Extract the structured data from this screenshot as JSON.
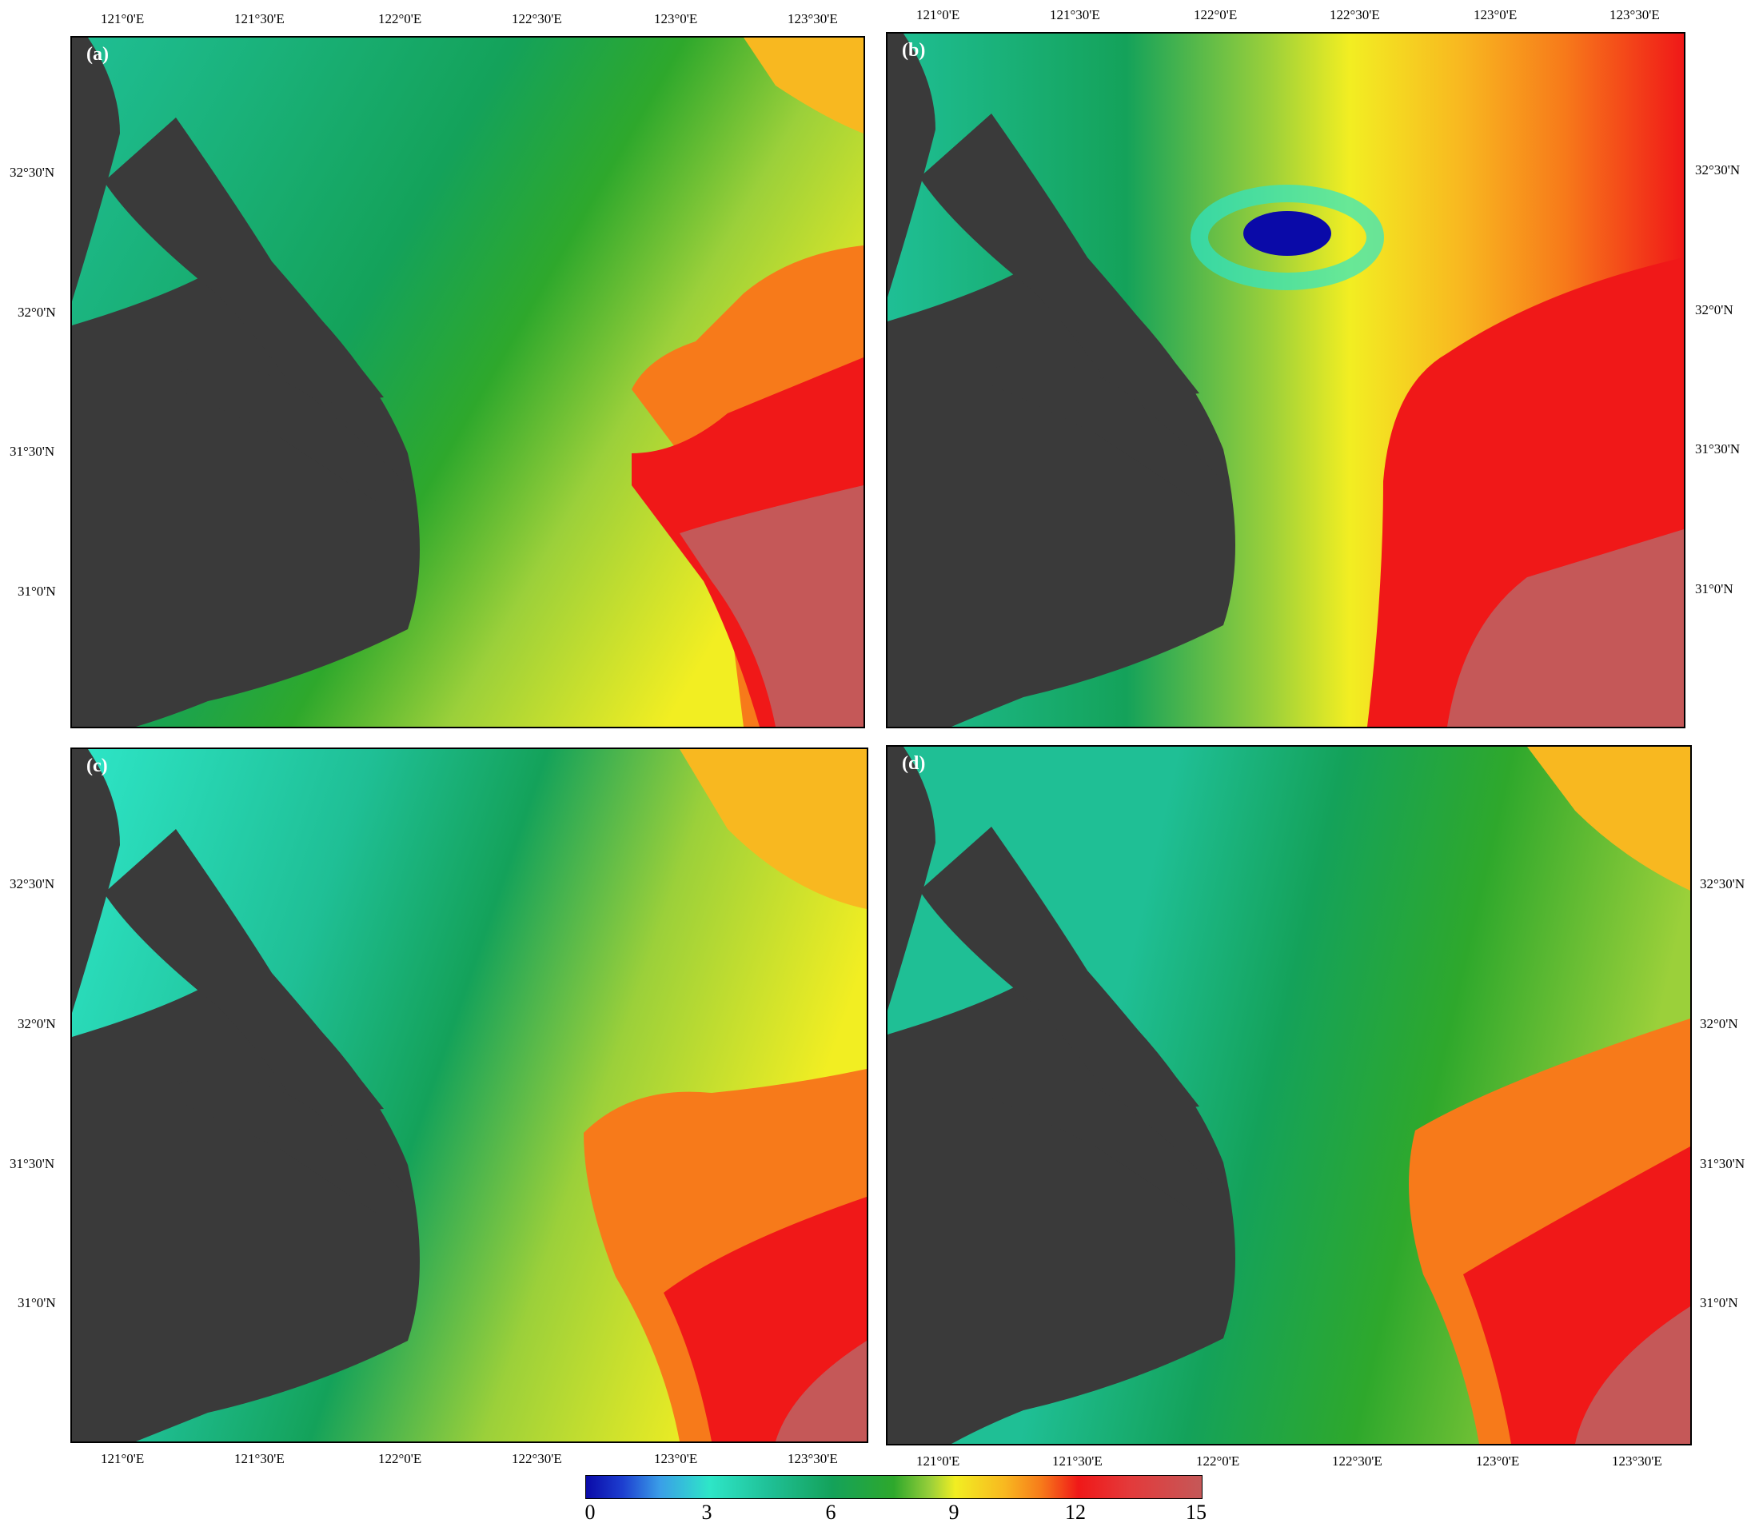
{
  "panels": [
    {
      "label": "(a)"
    },
    {
      "label": "(b)"
    },
    {
      "label": "(c)"
    },
    {
      "label": "(d)"
    }
  ],
  "lon_labels": [
    "121°0'E",
    "121°30'E",
    "122°0'E",
    "122°30'E",
    "123°0'E",
    "123°30'E"
  ],
  "lat_labels": [
    "32°30'N",
    "32°0'N",
    "31°30'N",
    "31°0'N"
  ],
  "colorbar": {
    "ticks": [
      "0",
      "3",
      "6",
      "9",
      "12",
      "15"
    ],
    "min": 0,
    "max": 15
  },
  "colors": {
    "land": "#3a3a3a",
    "low": "#0a0aa8",
    "cyan": "#2ee6c8",
    "green": "#14a25a",
    "yellow": "#f2ee22",
    "orange": "#f77a1a",
    "red": "#f01818",
    "high": "#c55858"
  }
}
